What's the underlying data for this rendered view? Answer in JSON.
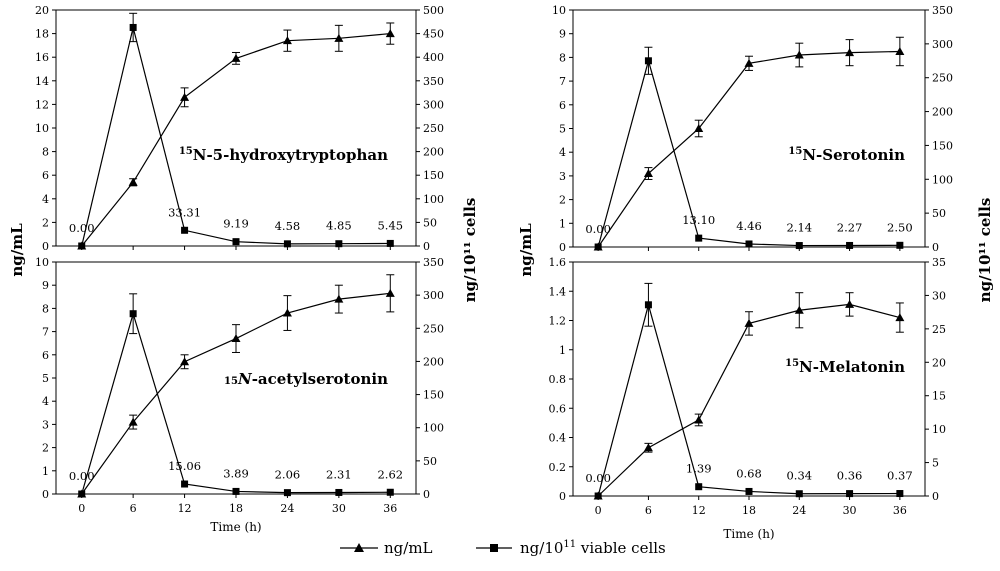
{
  "chart_data": [
    {
      "type": "line",
      "title": "5-hydroxytryptophan",
      "isotope": "15",
      "title_prefix": "",
      "title_italic": "",
      "title_rest": "",
      "x": [
        0,
        6,
        12,
        18,
        24,
        30,
        36
      ],
      "xticks": [
        "0",
        "6",
        "12",
        "18",
        "24",
        "30",
        "36"
      ],
      "ylabel_left": "ng/mL",
      "ylabel_right": "ng/10¹¹ cells",
      "ylim_left": [
        0,
        20
      ],
      "yticks_left": [
        "0",
        "2",
        "4",
        "6",
        "8",
        "10",
        "12",
        "14",
        "16",
        "18",
        "20"
      ],
      "ylim_right": [
        0,
        500
      ],
      "yticks_right": [
        "0",
        "50",
        "100",
        "150",
        "200",
        "250",
        "300",
        "350",
        "400",
        "450",
        "500"
      ],
      "series": [
        {
          "name": "ng/mL",
          "axis": "left",
          "marker": "triangle",
          "values": [
            0,
            5.4,
            12.6,
            15.9,
            17.4,
            17.6,
            18.0
          ],
          "errors": [
            0,
            0.3,
            0.8,
            0.5,
            0.9,
            1.1,
            0.9
          ]
        },
        {
          "name": "ng/10^11 viable cells",
          "axis": "right",
          "marker": "square",
          "values": [
            0,
            463,
            33.31,
            9.19,
            4.58,
            4.85,
            5.45
          ],
          "errors": [
            0,
            30,
            0,
            0,
            0,
            0,
            0
          ]
        }
      ],
      "data_labels": [
        "0.00",
        "",
        "33.31",
        "9.19",
        "4.58",
        "4.85",
        "5.45"
      ]
    },
    {
      "type": "line",
      "title": "Serotonin",
      "isotope": "15",
      "title_prefix": "",
      "title_italic": "",
      "title_rest": "",
      "x": [
        0,
        6,
        12,
        18,
        24,
        30,
        36
      ],
      "xticks": [
        "0",
        "6",
        "12",
        "18",
        "24",
        "30",
        "36"
      ],
      "ylabel_left": "ng/mL",
      "ylabel_right": "ng/10¹¹ cells",
      "ylim_left": [
        0,
        10
      ],
      "yticks_left": [
        "0",
        "1",
        "2",
        "3",
        "4",
        "5",
        "6",
        "7",
        "8",
        "9",
        "10"
      ],
      "ylim_right": [
        0,
        350
      ],
      "yticks_right": [
        "0",
        "50",
        "100",
        "150",
        "200",
        "250",
        "300",
        "350"
      ],
      "series": [
        {
          "name": "ng/mL",
          "axis": "left",
          "marker": "triangle",
          "values": [
            0,
            3.1,
            5.0,
            7.75,
            8.1,
            8.2,
            8.25
          ],
          "errors": [
            0,
            0.25,
            0.35,
            0.3,
            0.5,
            0.55,
            0.6
          ]
        },
        {
          "name": "ng/10^11 viable cells",
          "axis": "right",
          "marker": "square",
          "values": [
            0,
            275,
            13.1,
            4.46,
            2.14,
            2.27,
            2.5
          ],
          "errors": [
            0,
            20,
            0,
            0,
            0,
            0,
            0
          ]
        }
      ],
      "data_labels": [
        "0.00",
        "",
        "13.10",
        "4.46",
        "2.14",
        "2.27",
        "2.50"
      ]
    },
    {
      "type": "line",
      "title": "N-acetylserotonin",
      "isotope": "15",
      "title_prefix": "",
      "title_italic": "N",
      "title_rest": "-acetylserotonin",
      "x": [
        0,
        6,
        12,
        18,
        24,
        30,
        36
      ],
      "xticks": [
        "0",
        "6",
        "12",
        "18",
        "24",
        "30",
        "36"
      ],
      "xlabel": "Time (h)",
      "ylabel_left": "ng/mL",
      "ylabel_right": "ng/10¹¹ cells",
      "ylim_left": [
        0,
        10
      ],
      "yticks_left": [
        "0",
        "1",
        "2",
        "3",
        "4",
        "5",
        "6",
        "7",
        "8",
        "9",
        "10"
      ],
      "ylim_right": [
        0,
        350
      ],
      "yticks_right": [
        "0",
        "50",
        "100",
        "150",
        "200",
        "250",
        "300",
        "350"
      ],
      "series": [
        {
          "name": "ng/mL",
          "axis": "left",
          "marker": "triangle",
          "values": [
            0,
            3.1,
            5.7,
            6.7,
            7.8,
            8.4,
            8.65
          ],
          "errors": [
            0,
            0.3,
            0.3,
            0.6,
            0.75,
            0.6,
            0.8
          ]
        },
        {
          "name": "ng/10^11 viable cells",
          "axis": "right",
          "marker": "square",
          "values": [
            0,
            272,
            15.06,
            3.89,
            2.06,
            2.31,
            2.62
          ],
          "errors": [
            0,
            30,
            0,
            0,
            0,
            0,
            0
          ]
        }
      ],
      "data_labels": [
        "0.00",
        "",
        "15.06",
        "3.89",
        "2.06",
        "2.31",
        "2.62"
      ]
    },
    {
      "type": "line",
      "title": "Melatonin",
      "isotope": "15",
      "title_prefix": "",
      "title_italic": "",
      "title_rest": "",
      "x": [
        0,
        6,
        12,
        18,
        24,
        30,
        36
      ],
      "xticks": [
        "0",
        "6",
        "12",
        "18",
        "24",
        "30",
        "36"
      ],
      "xlabel": "Time (h)",
      "ylabel_left": "ng/mL",
      "ylabel_right": "ng/10¹¹ cells",
      "ylim_left": [
        0,
        1.6
      ],
      "yticks_left": [
        "0",
        "0.2",
        "0.4",
        "0.6",
        "0.8",
        "1",
        "1.2",
        "1.4",
        "1.6"
      ],
      "ylim_right": [
        0,
        35
      ],
      "yticks_right": [
        "0",
        "5",
        "10",
        "15",
        "20",
        "25",
        "30",
        "35"
      ],
      "series": [
        {
          "name": "ng/mL",
          "axis": "left",
          "marker": "triangle",
          "values": [
            0,
            0.33,
            0.52,
            1.18,
            1.27,
            1.31,
            1.22
          ],
          "errors": [
            0,
            0.03,
            0.04,
            0.08,
            0.12,
            0.08,
            0.1
          ]
        },
        {
          "name": "ng/10^11 viable cells",
          "axis": "right",
          "marker": "square",
          "values": [
            0,
            28.6,
            1.39,
            0.68,
            0.34,
            0.36,
            0.37
          ],
          "errors": [
            0,
            3.2,
            0,
            0,
            0,
            0,
            0
          ]
        }
      ],
      "data_labels": [
        "0.00",
        "",
        "1.39",
        "0.68",
        "0.34",
        "0.36",
        "0.37"
      ]
    }
  ],
  "legend": {
    "items": [
      {
        "label": "ng/mL",
        "marker": "triangle"
      },
      {
        "label_base": "ng/10",
        "label_sup": "11",
        "label_rest": " viable cells",
        "marker": "square"
      }
    ]
  }
}
